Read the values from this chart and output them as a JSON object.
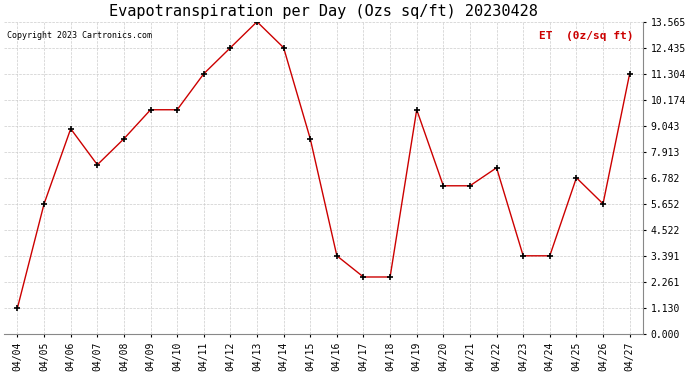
{
  "title": "Evapotranspiration per Day (Ozs sq/ft) 20230428",
  "legend_label": "ET  (0z/sq ft)",
  "copyright": "Copyright 2023 Cartronics.com",
  "dates": [
    "04/04",
    "04/05",
    "04/06",
    "04/07",
    "04/08",
    "04/09",
    "04/10",
    "04/11",
    "04/12",
    "04/13",
    "04/14",
    "04/15",
    "04/16",
    "04/17",
    "04/18",
    "04/19",
    "04/20",
    "04/21",
    "04/22",
    "04/23",
    "04/24",
    "04/25",
    "04/26",
    "04/27"
  ],
  "values": [
    1.13,
    5.652,
    8.913,
    7.348,
    8.478,
    9.739,
    9.739,
    11.304,
    12.435,
    13.565,
    12.435,
    8.478,
    3.391,
    2.47,
    2.47,
    9.739,
    6.434,
    6.434,
    7.217,
    3.391,
    3.391,
    6.782,
    5.652,
    11.304
  ],
  "ylim": [
    0.0,
    13.565
  ],
  "yticks": [
    0.0,
    1.13,
    2.261,
    3.391,
    4.522,
    5.652,
    6.782,
    7.913,
    9.043,
    10.174,
    11.304,
    12.435,
    13.565
  ],
  "line_color": "#cc0000",
  "marker": "+",
  "grid_color": "#cccccc",
  "bg_color": "#ffffff",
  "title_fontsize": 11,
  "tick_fontsize": 7,
  "legend_color": "#cc0000",
  "figwidth": 6.9,
  "figheight": 3.75,
  "dpi": 100
}
